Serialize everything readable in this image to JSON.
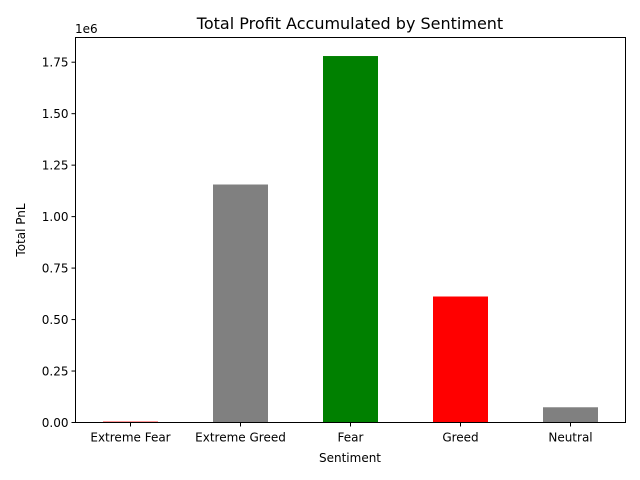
{
  "chart_data": {
    "type": "bar",
    "title": "Total Profit Accumulated by Sentiment",
    "xlabel": "Sentiment",
    "ylabel": "Total PnL",
    "offset_label": "1e6",
    "categories": [
      "Extreme Fear",
      "Extreme Greed",
      "Fear",
      "Greed",
      "Neutral"
    ],
    "values": [
      4400,
      1156000,
      1780000,
      612000,
      74000
    ],
    "colors": [
      "#ff0000",
      "#808080",
      "#008000",
      "#ff0000",
      "#808080"
    ],
    "ylim": [
      0,
      1870000
    ],
    "yticks": [
      0,
      250000,
      500000,
      750000,
      1000000,
      1250000,
      1500000,
      1750000
    ],
    "ytick_labels": [
      "0.00",
      "0.25",
      "0.50",
      "0.75",
      "1.00",
      "1.25",
      "1.50",
      "1.75"
    ],
    "grid": false,
    "legend": "none"
  }
}
